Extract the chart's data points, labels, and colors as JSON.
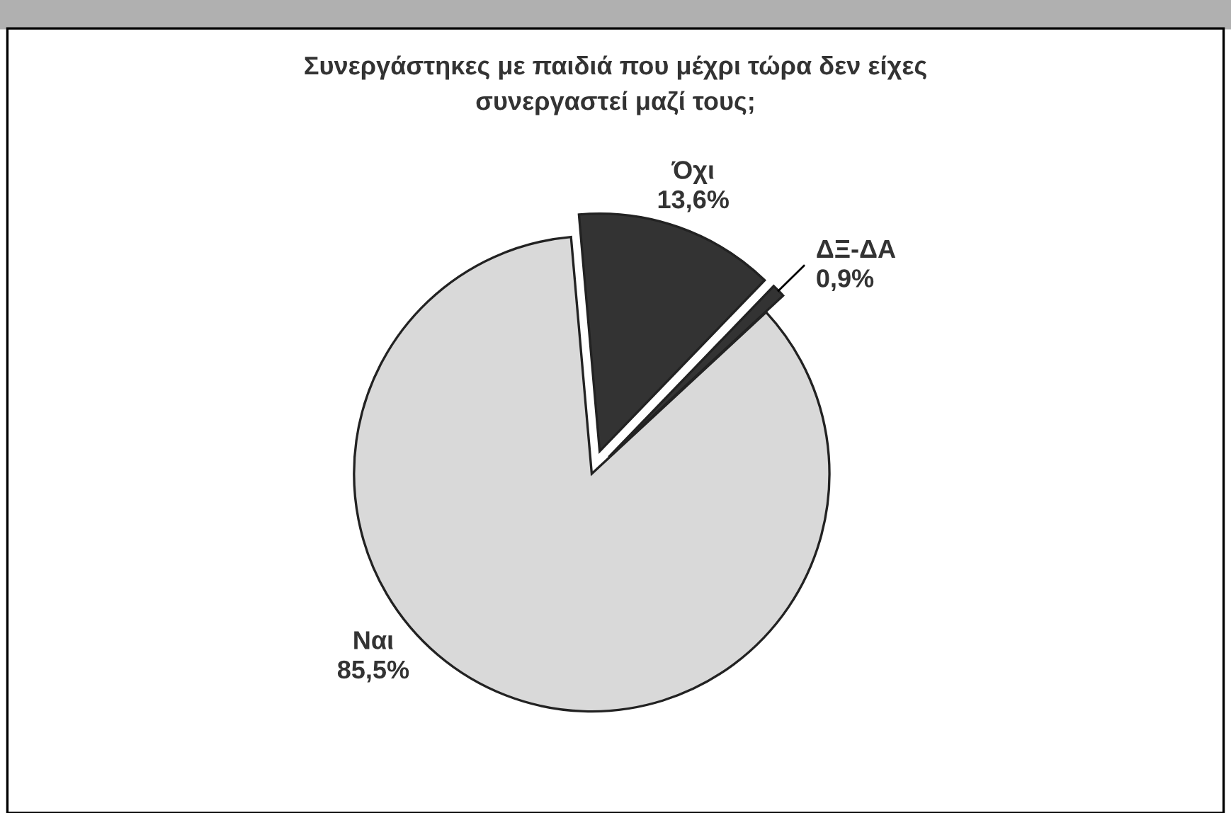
{
  "chart_data": {
    "type": "pie",
    "title": "Συνεργάστηκες με παιδιά που μέχρι τώρα δεν είχες\nσυνεργαστεί μαζί τους;",
    "categories": [
      "Όχι",
      "ΔΞ-ΔΑ",
      "Ναι"
    ],
    "values": [
      13.6,
      0.9,
      85.5
    ],
    "value_labels": [
      "13,6%",
      "0,9%",
      "85,5%"
    ],
    "colors": [
      "#333333",
      "#333333",
      "#d9d9d9"
    ],
    "legend": false
  }
}
